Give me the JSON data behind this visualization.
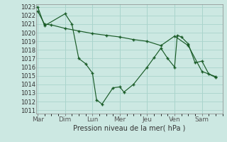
{
  "xlabel": "Pression niveau de la mer( hPa )",
  "bg_color": "#cce8e2",
  "grid_color": "#aad4cc",
  "line_color": "#1a5c28",
  "ylim_low": 1011,
  "ylim_high": 1023,
  "day_labels": [
    "Mar",
    "Dim",
    "Lun",
    "Mer",
    "Jeu",
    "Ven",
    "Sam"
  ],
  "day_positions": [
    0,
    2,
    4,
    6,
    8,
    10,
    12
  ],
  "series1_x": [
    0,
    0.5,
    2.0,
    2.5,
    3.0,
    3.5,
    4.0,
    4.3,
    4.7,
    5.5,
    6.0,
    6.3,
    7.0,
    8.0,
    8.5,
    9.0,
    9.5,
    10.0,
    10.2,
    10.5,
    11.0,
    11.5,
    12.0,
    12.5,
    13.0
  ],
  "series1_y": [
    1023.0,
    1020.8,
    1022.2,
    1021.0,
    1017.0,
    1016.4,
    1015.3,
    1012.2,
    1011.7,
    1013.6,
    1013.7,
    1013.1,
    1014.0,
    1016.0,
    1017.1,
    1018.2,
    1017.0,
    1016.0,
    1019.7,
    1019.5,
    1018.7,
    1016.5,
    1016.7,
    1015.2,
    1014.8
  ],
  "series2_x": [
    0,
    0.5,
    1.0,
    2.0,
    3.0,
    4.0,
    5.0,
    6.0,
    7.0,
    8.0,
    9.0,
    10.0,
    11.0,
    12.0,
    13.0
  ],
  "series2_y": [
    1022.5,
    1021.0,
    1020.9,
    1020.5,
    1020.2,
    1019.9,
    1019.7,
    1019.5,
    1019.2,
    1019.0,
    1018.5,
    1019.6,
    1018.5,
    1015.5,
    1014.9
  ],
  "yticks": [
    1011,
    1012,
    1013,
    1014,
    1015,
    1016,
    1017,
    1018,
    1019,
    1020,
    1021,
    1022,
    1023
  ],
  "figw": 3.2,
  "figh": 2.0,
  "dpi": 100
}
